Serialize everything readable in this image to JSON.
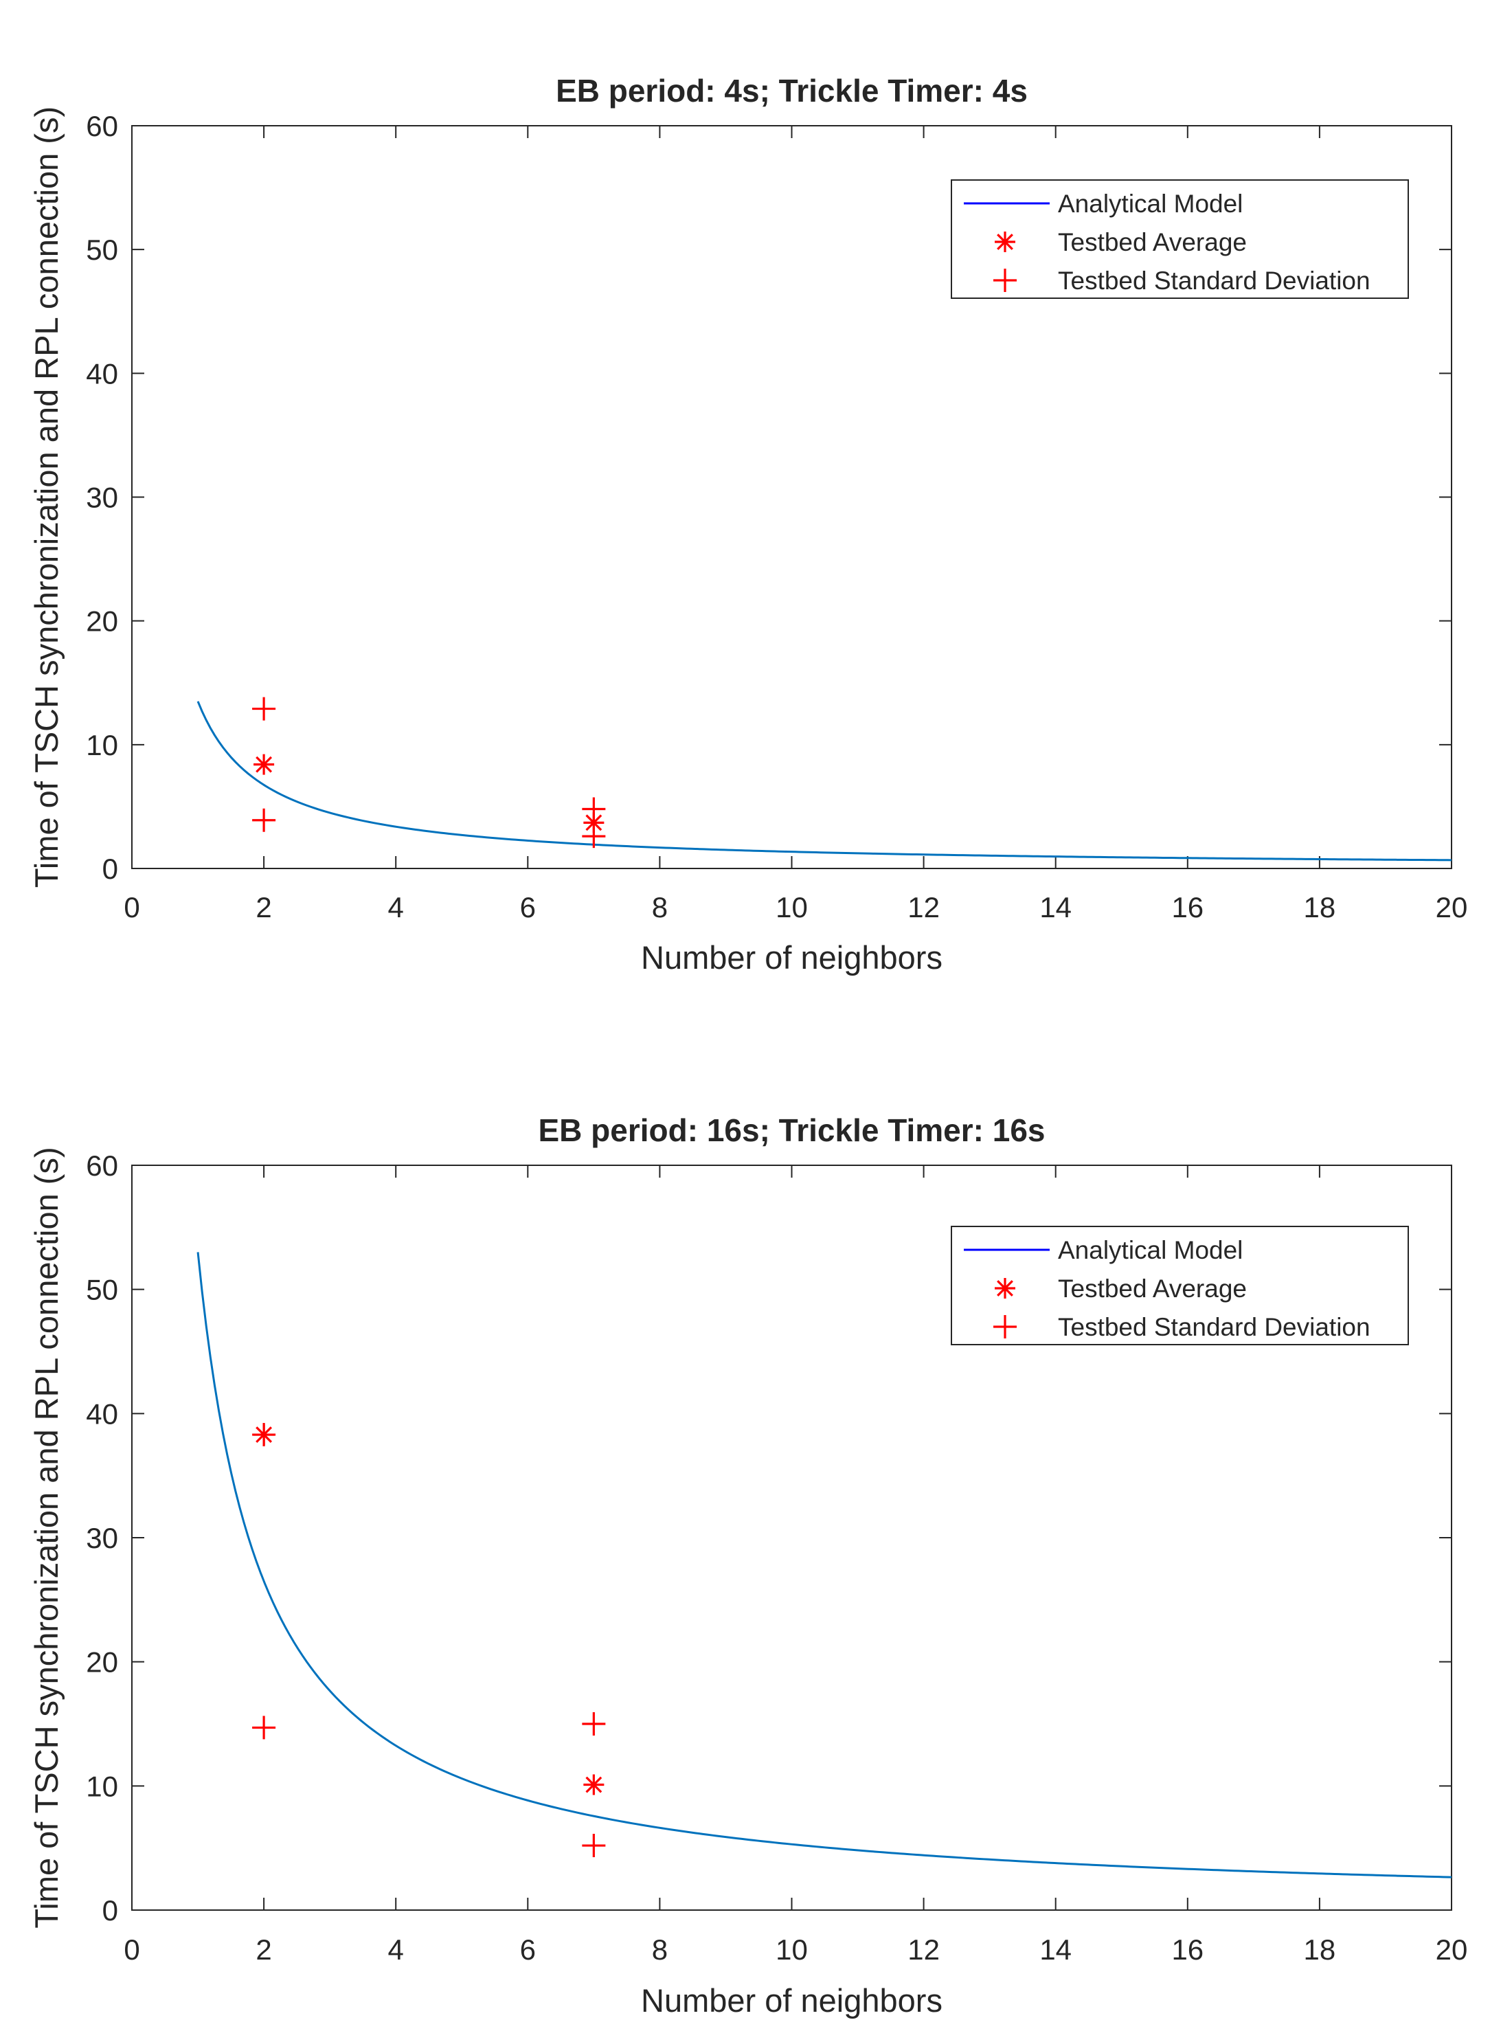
{
  "chart_data": [
    {
      "type": "line+scatter",
      "title": "EB period: 4s; Trickle Timer: 4s",
      "xlabel": "Number of neighbors",
      "ylabel": "Time of TSCH synchronization and RPL connection (s)",
      "xlim": [
        0,
        20
      ],
      "ylim": [
        0,
        60
      ],
      "xticks": [
        "0",
        "2",
        "4",
        "6",
        "8",
        "10",
        "12",
        "14",
        "16",
        "18",
        "20"
      ],
      "yticks": [
        "0",
        "10",
        "20",
        "30",
        "40",
        "50",
        "60"
      ],
      "grid": false,
      "legend_position": "top-right",
      "colors": {
        "model": "#0072BD",
        "model_legend": "#0000FF",
        "testbed": "#FF0000"
      },
      "legend": {
        "analytical": "Analytical Model",
        "average": "Testbed Average",
        "std": "Testbed Standard Deviation"
      },
      "series": [
        {
          "name": "Analytical Model",
          "kind": "line",
          "formula": "y = 13.5 / x",
          "coefficient": 13.5,
          "x_range": [
            1,
            20
          ]
        },
        {
          "name": "Testbed Average",
          "kind": "scatter",
          "marker": "*",
          "x": [
            2,
            7
          ],
          "y": [
            8.4,
            3.7
          ]
        },
        {
          "name": "Testbed Standard Deviation",
          "kind": "scatter",
          "marker": "+",
          "x": [
            2,
            2,
            7,
            7
          ],
          "y": [
            12.9,
            3.9,
            4.8,
            2.6
          ]
        }
      ]
    },
    {
      "type": "line+scatter",
      "title": "EB period: 16s; Trickle Timer: 16s",
      "xlabel": "Number of neighbors",
      "ylabel": "Time of TSCH synchronization and RPL connection (s)",
      "xlim": [
        0,
        20
      ],
      "ylim": [
        0,
        60
      ],
      "xticks": [
        "0",
        "2",
        "4",
        "6",
        "8",
        "10",
        "12",
        "14",
        "16",
        "18",
        "20"
      ],
      "yticks": [
        "0",
        "10",
        "20",
        "30",
        "40",
        "50",
        "60"
      ],
      "grid": false,
      "legend_position": "top-right",
      "colors": {
        "model": "#0072BD",
        "model_legend": "#0000FF",
        "testbed": "#FF0000"
      },
      "legend": {
        "analytical": "Analytical Model",
        "average": "Testbed Average",
        "std": "Testbed Standard Deviation"
      },
      "series": [
        {
          "name": "Analytical Model",
          "kind": "line",
          "formula": "y = 53 / x",
          "coefficient": 53,
          "x_range": [
            1,
            20
          ]
        },
        {
          "name": "Testbed Average",
          "kind": "scatter",
          "marker": "*",
          "x": [
            2,
            7
          ],
          "y": [
            38.3,
            10.1
          ]
        },
        {
          "name": "Testbed Standard Deviation",
          "kind": "scatter",
          "marker": "+",
          "x": [
            2,
            2,
            7,
            7
          ],
          "y": [
            14.7,
            38.3,
            15.0,
            5.2
          ]
        }
      ]
    }
  ]
}
